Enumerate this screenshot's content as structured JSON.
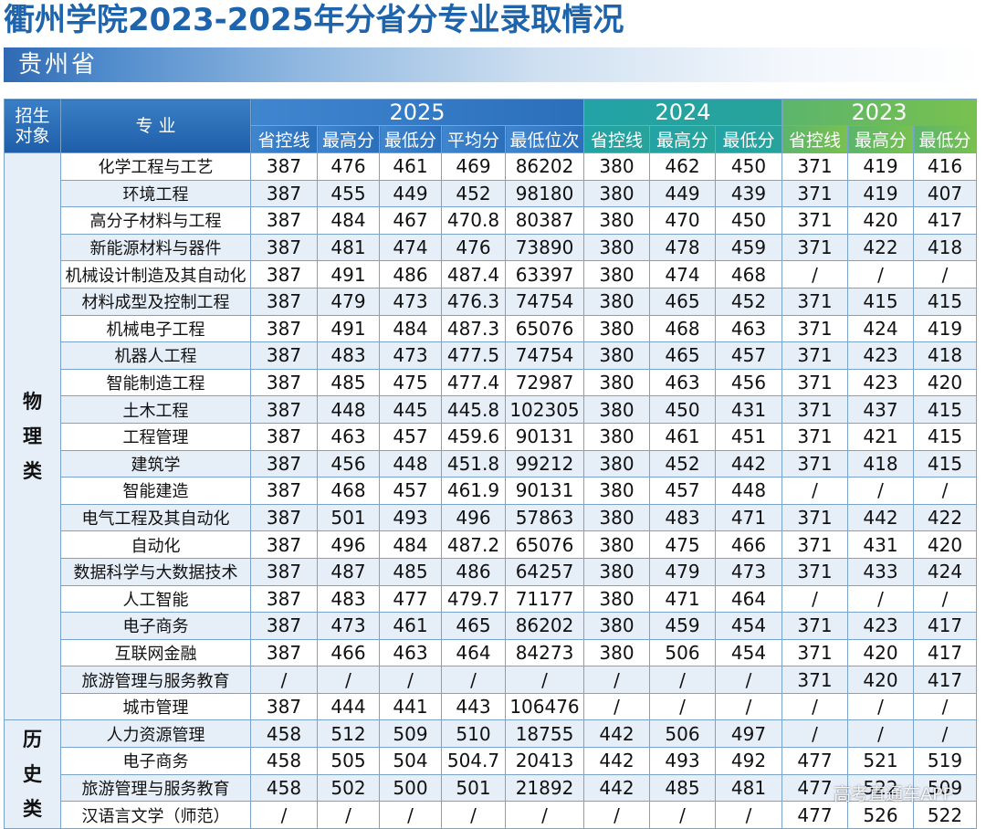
{
  "title": "衢州学院2023-2025年分省分专业录取情况",
  "province": "贵州省",
  "header": {
    "col_category": "招生对象",
    "col_major": "专 业",
    "years": [
      "2025",
      "2024",
      "2023"
    ],
    "sub_2025": [
      "省控线",
      "最高分",
      "最低分",
      "平均分",
      "最低位次"
    ],
    "sub_2024": [
      "省控线",
      "最高分",
      "最低分"
    ],
    "sub_2023": [
      "省控线",
      "最高分",
      "最低分"
    ]
  },
  "groups": [
    {
      "category": "物理类",
      "rows": [
        {
          "major": "化学工程与工艺",
          "values": [
            "387",
            "476",
            "461",
            "469",
            "86202",
            "380",
            "462",
            "450",
            "371",
            "419",
            "416"
          ]
        },
        {
          "major": "环境工程",
          "values": [
            "387",
            "455",
            "449",
            "452",
            "98180",
            "380",
            "449",
            "439",
            "371",
            "419",
            "407"
          ]
        },
        {
          "major": "高分子材料与工程",
          "values": [
            "387",
            "484",
            "467",
            "470.8",
            "80387",
            "380",
            "470",
            "450",
            "371",
            "420",
            "417"
          ]
        },
        {
          "major": "新能源材料与器件",
          "values": [
            "387",
            "481",
            "474",
            "476",
            "73890",
            "380",
            "478",
            "459",
            "371",
            "422",
            "418"
          ]
        },
        {
          "major": "机械设计制造及其自动化",
          "values": [
            "387",
            "491",
            "486",
            "487.4",
            "63397",
            "380",
            "474",
            "468",
            "/",
            "/",
            "/"
          ]
        },
        {
          "major": "材料成型及控制工程",
          "values": [
            "387",
            "479",
            "473",
            "476.3",
            "74754",
            "380",
            "465",
            "452",
            "371",
            "415",
            "415"
          ]
        },
        {
          "major": "机械电子工程",
          "values": [
            "387",
            "491",
            "484",
            "487.3",
            "65076",
            "380",
            "468",
            "463",
            "371",
            "424",
            "419"
          ]
        },
        {
          "major": "机器人工程",
          "values": [
            "387",
            "483",
            "473",
            "477.5",
            "74754",
            "380",
            "465",
            "457",
            "371",
            "423",
            "418"
          ]
        },
        {
          "major": "智能制造工程",
          "values": [
            "387",
            "485",
            "475",
            "477.4",
            "72987",
            "380",
            "463",
            "456",
            "371",
            "423",
            "420"
          ]
        },
        {
          "major": "土木工程",
          "values": [
            "387",
            "448",
            "445",
            "445.8",
            "102305",
            "380",
            "450",
            "431",
            "371",
            "437",
            "415"
          ]
        },
        {
          "major": "工程管理",
          "values": [
            "387",
            "463",
            "457",
            "459.6",
            "90131",
            "380",
            "461",
            "451",
            "371",
            "421",
            "415"
          ]
        },
        {
          "major": "建筑学",
          "values": [
            "387",
            "456",
            "448",
            "451.8",
            "99212",
            "380",
            "452",
            "442",
            "371",
            "418",
            "415"
          ]
        },
        {
          "major": "智能建造",
          "values": [
            "387",
            "468",
            "457",
            "461.9",
            "90131",
            "380",
            "457",
            "448",
            "/",
            "/",
            "/"
          ]
        },
        {
          "major": "电气工程及其自动化",
          "values": [
            "387",
            "501",
            "493",
            "496",
            "57863",
            "380",
            "483",
            "471",
            "371",
            "442",
            "422"
          ]
        },
        {
          "major": "自动化",
          "values": [
            "387",
            "496",
            "484",
            "487.2",
            "65076",
            "380",
            "475",
            "466",
            "371",
            "431",
            "420"
          ]
        },
        {
          "major": "数据科学与大数据技术",
          "values": [
            "387",
            "487",
            "485",
            "486",
            "64257",
            "380",
            "479",
            "473",
            "371",
            "433",
            "424"
          ]
        },
        {
          "major": "人工智能",
          "values": [
            "387",
            "483",
            "477",
            "479.7",
            "71177",
            "380",
            "471",
            "464",
            "/",
            "/",
            "/"
          ]
        },
        {
          "major": "电子商务",
          "values": [
            "387",
            "473",
            "461",
            "465",
            "86202",
            "380",
            "459",
            "454",
            "371",
            "423",
            "417"
          ]
        },
        {
          "major": "互联网金融",
          "values": [
            "387",
            "466",
            "463",
            "464",
            "84273",
            "380",
            "506",
            "454",
            "371",
            "420",
            "417"
          ]
        },
        {
          "major": "旅游管理与服务教育",
          "values": [
            "/",
            "/",
            "/",
            "/",
            "/",
            "/",
            "/",
            "/",
            "371",
            "420",
            "417"
          ]
        },
        {
          "major": "城市管理",
          "values": [
            "387",
            "444",
            "441",
            "443",
            "106476",
            "/",
            "/",
            "/",
            "/",
            "/",
            "/"
          ]
        }
      ]
    },
    {
      "category": "历史类",
      "rows": [
        {
          "major": "人力资源管理",
          "values": [
            "458",
            "512",
            "509",
            "510",
            "18755",
            "442",
            "506",
            "497",
            "/",
            "/",
            "/"
          ]
        },
        {
          "major": "电子商务",
          "values": [
            "458",
            "505",
            "504",
            "504.7",
            "20413",
            "442",
            "493",
            "492",
            "477",
            "521",
            "519"
          ]
        },
        {
          "major": "旅游管理与服务教育",
          "values": [
            "458",
            "502",
            "500",
            "501",
            "21892",
            "442",
            "485",
            "481",
            "477",
            "522",
            "509"
          ]
        },
        {
          "major": "汉语言文学（师范）",
          "values": [
            "/",
            "/",
            "/",
            "/",
            "/",
            "/",
            "/",
            "/",
            "477",
            "526",
            "522"
          ]
        }
      ]
    }
  ],
  "watermark": "高考直通车APP"
}
